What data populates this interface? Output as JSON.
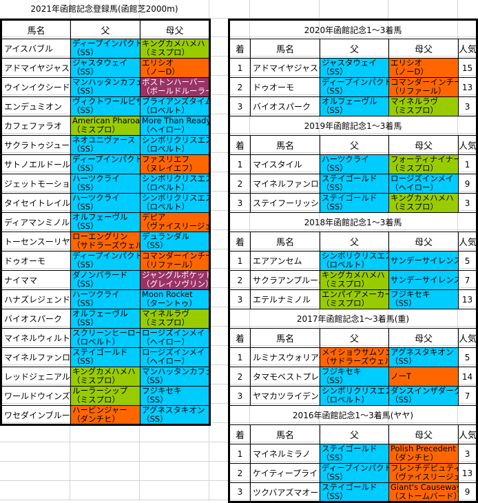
{
  "colors": {
    "b": "#00ccff",
    "g": "#99cc00",
    "o": "#ff6600",
    "p": "#993366"
  },
  "left": {
    "title": "2021年函館記念登録馬(函館芝2000m)",
    "headers": [
      "馬名",
      "父",
      "母父"
    ],
    "rows": [
      {
        "name": "アイスバブル",
        "sire": [
          "ディープインパクト",
          "（SS）"
        ],
        "sire_color": "b",
        "bms": [
          "キングカメハメハ",
          "（ミスプロ）"
        ],
        "bms_color": "g"
      },
      {
        "name": "アドマイヤジャスタ",
        "sire": [
          "ジャスタウェイ",
          "（SS）"
        ],
        "sire_color": "b",
        "bms": [
          "エリシオ",
          "（ノーD）"
        ],
        "bms_color": "o"
      },
      {
        "name": "ウインイクシード",
        "sire": [
          "マンハッタンカフェ",
          "（SS）"
        ],
        "sire_color": "b",
        "bms": [
          "ボストンハーバー",
          "（ボールドルーラー）"
        ],
        "bms_color": "p"
      },
      {
        "name": "エンデュミオン",
        "sire": [
          "ヴィクトワールピサ",
          "（SS）"
        ],
        "sire_color": "b",
        "bms": [
          "ブライアンズタイム",
          "（ロベルト）"
        ],
        "bms_color": "b"
      },
      {
        "name": "カフェファラオ",
        "sire": [
          "American Pharoah",
          "（ミスプロ）"
        ],
        "sire_color": "g",
        "bms": [
          "More Than Ready",
          "（ヘイロー）"
        ],
        "bms_color": "b"
      },
      {
        "name": "サクラトゥジュール",
        "sire": [
          "ネオユニヴァース",
          "（SS）"
        ],
        "sire_color": "b",
        "bms": [
          "シンボリクリスエス",
          "（ロベルト）"
        ],
        "bms_color": "b"
      },
      {
        "name": "サトノエルドール",
        "sire": [
          "ディープインパクト",
          "（SS）"
        ],
        "sire_color": "b",
        "bms": [
          "ファスリエフ",
          "（ヌレイエフ）"
        ],
        "bms_color": "o"
      },
      {
        "name": "ジェットモーション",
        "sire": [
          "ハーツクライ",
          "（SS）"
        ],
        "sire_color": "b",
        "bms": [
          "シンボリクリスエス",
          "（ロベルト）"
        ],
        "bms_color": "b"
      },
      {
        "name": "タイセイトレイル",
        "sire": [
          "ハーツクライ",
          "（SS）"
        ],
        "sire_color": "b",
        "bms": [
          "シンボリクリスエス",
          "（ロベルト）"
        ],
        "bms_color": "b"
      },
      {
        "name": "ディアマンミノル",
        "sire": [
          "オルフェーヴル",
          "（SS）"
        ],
        "sire_color": "b",
        "bms": [
          "デピア",
          "（ヴァイスリージェ）"
        ],
        "bms_color": "o"
      },
      {
        "name": "トーセンスーリヤ",
        "sire": [
          "ローエングリン",
          "（サドラーズウェル）"
        ],
        "sire_color": "o",
        "bms": [
          "デュランダル",
          "（SS）"
        ],
        "bms_color": "b"
      },
      {
        "name": "ドゥオーモ",
        "sire": [
          "ディープインパクト",
          "（SS）"
        ],
        "sire_color": "b",
        "bms": [
          "コマンダーインチーフ",
          "（リファール）"
        ],
        "bms_color": "o"
      },
      {
        "name": "ナイママ",
        "sire": [
          "ダノンバラード",
          "（SS）"
        ],
        "sire_color": "b",
        "bms": [
          "ジャングルポケット",
          "（グレイソヴリン）"
        ],
        "bms_color": "p"
      },
      {
        "name": "ハナズレジェンド",
        "sire": [
          "ハーツクライ",
          "（SS）"
        ],
        "sire_color": "b",
        "bms": [
          "Moon Rocket",
          "（ターントゥ）"
        ],
        "bms_color": "b"
      },
      {
        "name": "バイオスパーク",
        "sire": [
          "オルフェーヴル",
          "（SS）"
        ],
        "sire_color": "b",
        "bms": [
          "マイネルラヴ",
          "（ミスプロ）"
        ],
        "bms_color": "g"
      },
      {
        "name": "マイネルウィルトス",
        "sire": [
          "スクリーンヒーロー",
          "（ロベルト）"
        ],
        "sire_color": "b",
        "bms": [
          "ロージズインメイ",
          "（ヘイロー）"
        ],
        "bms_color": "b"
      },
      {
        "name": "マイネルファンロン",
        "sire": [
          "ステイゴールド",
          "（SS）"
        ],
        "sire_color": "b",
        "bms": [
          "ロージズインメイ",
          "（ヘイロー）"
        ],
        "bms_color": "b"
      },
      {
        "name": "レッドジェニアル",
        "sire": [
          "キングカメハメハ",
          "（ミスプロ）"
        ],
        "sire_color": "g",
        "bms": [
          "マンハッタンカフェ",
          "（SS）"
        ],
        "bms_color": "b"
      },
      {
        "name": "ワールドウインズ",
        "sire": [
          "ルーラーシップ",
          "（ミスプロ）"
        ],
        "sire_color": "g",
        "bms": [
          "フジキセキ",
          "（SS）"
        ],
        "bms_color": "b"
      },
      {
        "name": "ワセダインブルー",
        "sire": [
          "ハービンジャー",
          "（ダンチヒ）"
        ],
        "sire_color": "o",
        "bms": [
          "アグネスタキオン",
          "（SS）"
        ],
        "bms_color": "b"
      }
    ]
  },
  "right": {
    "headers": [
      "着",
      "馬名",
      "父",
      "母父",
      "人気"
    ],
    "sections": [
      {
        "title": "2020年函館記念1〜3着馬",
        "rows": [
          {
            "rank": "1",
            "name": "アドマイヤジャスタ",
            "sire": [
              "ジャスタウェイ",
              "（SS）"
            ],
            "sire_color": "b",
            "bms": [
              "エリシオ",
              "（ノーD）"
            ],
            "bms_color": "o",
            "pop": "15"
          },
          {
            "rank": "2",
            "name": "ドゥオーモ",
            "sire": [
              "ディープインパクト",
              "（SS）"
            ],
            "sire_color": "b",
            "bms": [
              "コマンダーインチーフ",
              "（リファール）"
            ],
            "bms_color": "o",
            "pop": "13"
          },
          {
            "rank": "3",
            "name": "バイオスパーク",
            "sire": [
              "オルフェーヴル",
              "（SS）"
            ],
            "sire_color": "b",
            "bms": [
              "マイネルラヴ",
              "（ミスプロ）"
            ],
            "bms_color": "g",
            "pop": "3"
          }
        ]
      },
      {
        "title": "2019年函館記念1〜3着馬",
        "rows": [
          {
            "rank": "1",
            "name": "マイスタイル",
            "sire": [
              "ハーツクライ",
              "（SS）"
            ],
            "sire_color": "b",
            "bms": [
              "フォーティナイナー",
              "（ミスプロ）"
            ],
            "bms_color": "g",
            "pop": "1"
          },
          {
            "rank": "2",
            "name": "マイネルファンロン",
            "sire": [
              "ステイゴールド",
              "（SS）"
            ],
            "sire_color": "b",
            "bms": [
              "ロージズインメイ",
              "（ヘイロー）"
            ],
            "bms_color": "b",
            "pop": "9"
          },
          {
            "rank": "3",
            "name": "ステイフーリッシュ",
            "sire": [
              "ステイゴールド",
              "（SS）"
            ],
            "sire_color": "b",
            "bms": [
              "キングカメハメハ",
              "（ミスプロ）"
            ],
            "bms_color": "g",
            "pop": "3"
          }
        ]
      },
      {
        "title": "2018年函館記念1〜3着馬",
        "rows": [
          {
            "rank": "1",
            "name": "エアアンセム",
            "sire": [
              "シンボリクリスエス",
              "（ロベルト）"
            ],
            "sire_color": "b",
            "bms": [
              "サンデーサイレンス"
            ],
            "bms_color": "b",
            "pop": "5"
          },
          {
            "rank": "2",
            "name": "サクラアンプルール",
            "sire": [
              "キングカメハメハ",
              "（ミスプロ）"
            ],
            "sire_color": "g",
            "bms": [
              "サンデーサイレンス"
            ],
            "bms_color": "b",
            "pop": "7"
          },
          {
            "rank": "3",
            "name": "エテルナミノル",
            "sire": [
              "エンパイアメーカー",
              "（ミスプロ）"
            ],
            "sire_color": "g",
            "bms": [
              "フジキセキ",
              "（SS）"
            ],
            "bms_color": "b",
            "pop": "13"
          }
        ]
      },
      {
        "title": "2017年函館記念1〜3着馬(重)",
        "rows": [
          {
            "rank": "1",
            "name": "ルミナスウォリアー",
            "sire": [
              "メイショウサムソン",
              "（サドラーズウェル）"
            ],
            "sire_color": "o",
            "bms": [
              "アグネスタキオン",
              "（SS）"
            ],
            "bms_color": "b",
            "pop": "5"
          },
          {
            "rank": "2",
            "name": "タマモベストプレイ",
            "sire": [
              "フジキセキ",
              "（SS）"
            ],
            "sire_color": "b",
            "bms": [
              "ノーT"
            ],
            "bms_color": "o",
            "pop": "14"
          },
          {
            "rank": "3",
            "name": "ヤマカツライデン",
            "sire": [
              "シンボリクリスエス",
              "（ロベルト）"
            ],
            "sire_color": "b",
            "bms": [
              "ダンスインザダーク",
              "（SS）"
            ],
            "bms_color": "b",
            "pop": "7"
          }
        ]
      },
      {
        "title": "2016年函館記念1〜3着馬(ヤヤ)",
        "rows": [
          {
            "rank": "1",
            "name": "マイネルミラノ",
            "sire": [
              "ステイゴールド",
              "（SS）"
            ],
            "sire_color": "b",
            "bms": [
              "Polish Precedent",
              "（ダンチヒ）"
            ],
            "bms_color": "o",
            "pop": "3"
          },
          {
            "rank": "2",
            "name": "ケイティープライド",
            "sire": [
              "ディープインパクト",
              "（SS）"
            ],
            "sire_color": "b",
            "bms": [
              "フレンチデピュティ",
              "（ヴァイスリージェ）"
            ],
            "bms_color": "o",
            "pop": "13"
          },
          {
            "rank": "3",
            "name": "ツクバアズマオー",
            "sire": [
              "ステイゴールド",
              "（SS）"
            ],
            "sire_color": "b",
            "bms": [
              "Giant's Causeway",
              "（ストームバード）"
            ],
            "bms_color": "o",
            "pop": "9"
          }
        ]
      }
    ]
  }
}
